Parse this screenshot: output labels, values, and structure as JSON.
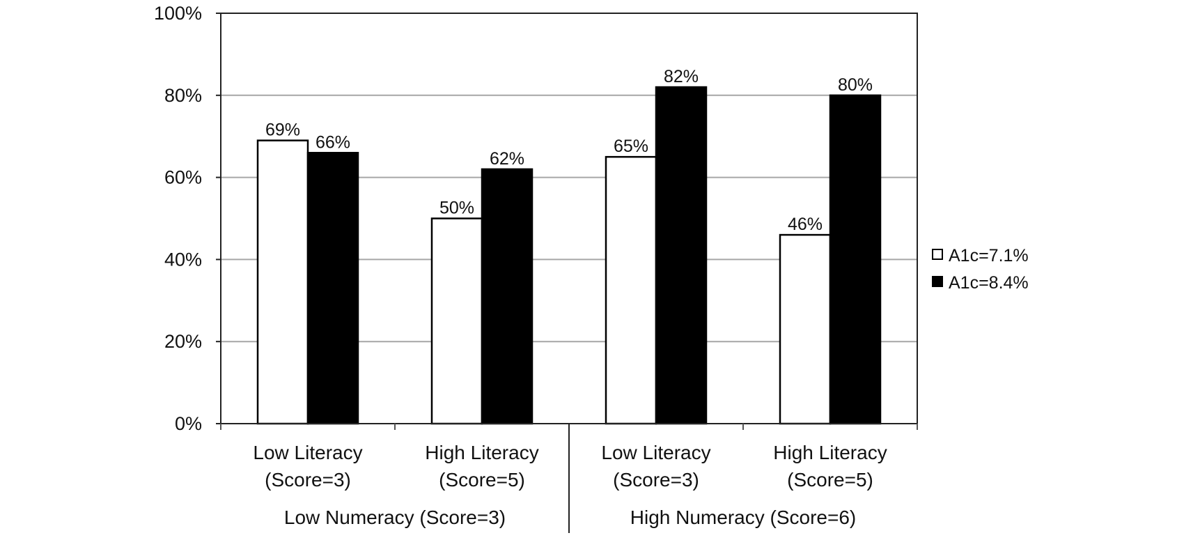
{
  "chart_data": {
    "type": "bar",
    "categories": [
      {
        "line1": "Low Literacy",
        "line2": "(Score=3)"
      },
      {
        "line1": "High Literacy",
        "line2": "(Score=5)"
      },
      {
        "line1": "Low Literacy",
        "line2": "(Score=3)"
      },
      {
        "line1": "High Literacy",
        "line2": "(Score=5)"
      }
    ],
    "groups": [
      {
        "label": "Low Numeracy (Score=3)",
        "categories": [
          0,
          1
        ]
      },
      {
        "label": "High Numeracy (Score=6)",
        "categories": [
          2,
          3
        ]
      }
    ],
    "series": [
      {
        "name": "A1c=7.1%",
        "values": [
          69,
          50,
          65,
          46
        ],
        "labels": [
          "69%",
          "50%",
          "65%",
          "46%"
        ],
        "color": "#ffffff"
      },
      {
        "name": "A1c=8.4%",
        "values": [
          66,
          62,
          82,
          80
        ],
        "labels": [
          "66%",
          "62%",
          "82%",
          "80%"
        ],
        "color": "#000000"
      }
    ],
    "ylim": [
      0,
      100
    ],
    "yticks": [
      "0%",
      "20%",
      "40%",
      "60%",
      "80%",
      "100%"
    ],
    "grid": true,
    "legend_position": "right",
    "title": "",
    "xlabel": "",
    "ylabel": ""
  }
}
